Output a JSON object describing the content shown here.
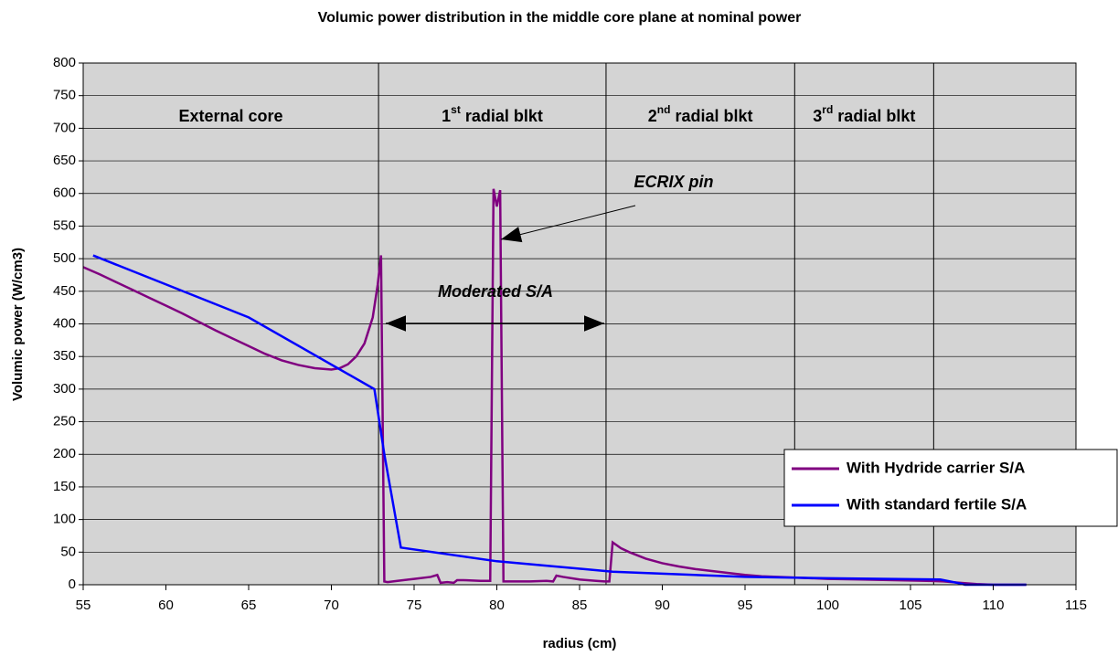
{
  "chart_data": {
    "type": "line",
    "title": "Volumic power distribution in the middle core plane at nominal power",
    "xlabel": "radius (cm)",
    "ylabel": "Volumic power (W/cm3)",
    "xlim": [
      55,
      115
    ],
    "xticks": [
      55,
      60,
      65,
      70,
      75,
      80,
      85,
      90,
      95,
      100,
      105,
      110,
      115
    ],
    "ylim": [
      0,
      800
    ],
    "yticks": [
      0,
      50,
      100,
      150,
      200,
      250,
      300,
      350,
      400,
      450,
      500,
      550,
      600,
      650,
      700,
      750,
      800
    ],
    "grid": true,
    "legend": "right",
    "boundaries": [
      72.85,
      86.6,
      98,
      106.4
    ],
    "regions": [
      {
        "text": "External core"
      },
      {
        "text": "1",
        "sup": "st",
        "rest": " radial blkt"
      },
      {
        "text": "2",
        "sup": "nd",
        "rest": " radial blkt"
      },
      {
        "text": "3",
        "sup": "rd",
        "rest": " radial blkt"
      }
    ],
    "annotations": [
      "ECRIX pin",
      "Moderated S/A"
    ],
    "series": [
      {
        "name": "With Hydride carrier S/A",
        "color": "#800080",
        "x": [
          55,
          56,
          57,
          58,
          59,
          60,
          61,
          62,
          63,
          64,
          65,
          66,
          67,
          68,
          69,
          70,
          70.5,
          71,
          71.5,
          72,
          72.5,
          72.8,
          73,
          73.2,
          73.4,
          74,
          75,
          76,
          76.4,
          76.6,
          77,
          77.4,
          77.6,
          78,
          79,
          79.6,
          79.8,
          80,
          80.2,
          80.4,
          81,
          82,
          83,
          83.4,
          83.6,
          84,
          85,
          86,
          86.5,
          86.8,
          87,
          87.5,
          88,
          89,
          90,
          91,
          92,
          93,
          94,
          95,
          96,
          98,
          100,
          102,
          104,
          106,
          107,
          108,
          109,
          110,
          111,
          112
        ],
        "values": [
          487,
          476,
          464,
          452,
          440,
          428,
          416,
          403,
          390,
          378,
          366,
          354,
          344,
          337,
          332,
          330,
          332,
          338,
          350,
          370,
          410,
          460,
          505,
          5,
          4,
          6,
          9,
          12,
          15,
          3,
          4,
          3,
          7,
          7,
          6,
          6,
          607,
          580,
          605,
          5,
          5,
          5,
          6,
          5,
          14,
          12,
          8,
          6,
          5,
          5,
          65,
          56,
          50,
          40,
          33,
          28,
          24,
          21,
          18,
          15,
          13,
          11,
          9,
          8,
          7,
          6,
          5,
          3,
          1,
          0,
          0,
          0
        ]
      },
      {
        "name": "With standard fertile S/A",
        "color": "#0000ff",
        "x": [
          55.6,
          65,
          72.6,
          73.2,
          74.2,
          80,
          87,
          95,
          100,
          106.8,
          108,
          108.3,
          112
        ],
        "values": [
          505,
          410,
          300,
          200,
          57,
          36,
          20,
          12,
          10,
          8,
          2,
          0,
          0
        ]
      }
    ]
  }
}
